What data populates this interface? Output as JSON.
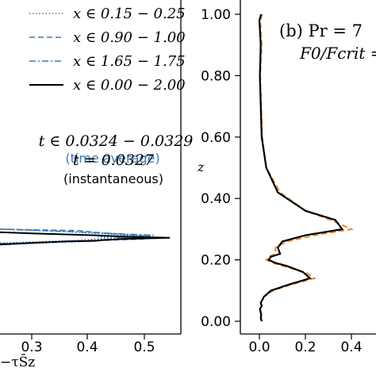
{
  "chart_data": [
    {
      "type": "line",
      "panel": "left",
      "xlabel": "−τS̄z",
      "x_ticks": [
        "0.3",
        "0.4",
        "0.5"
      ],
      "xlim_visible": [
        0.0,
        0.57
      ],
      "legend_placement": "top-right",
      "series": [
        {
          "name": "x ∈ 0.15 − 0.25",
          "style": "dotted",
          "color": "#3a7ab8",
          "x": [
            0.0,
            0.2,
            0.3,
            0.36,
            0.3,
            0.4,
            0.3,
            0.2,
            0.1,
            0.0
          ],
          "y": [
            0.255,
            0.262,
            0.268,
            0.27,
            0.275,
            0.28,
            0.286,
            0.292,
            0.297,
            0.3
          ]
        },
        {
          "name": "x ∈ 0.90 − 1.00",
          "style": "dashed",
          "color": "#3a7ab8",
          "x": [
            0.0,
            0.25,
            0.35,
            0.44,
            0.36,
            0.46,
            0.38,
            0.3,
            0.24,
            0.0
          ],
          "y": [
            0.252,
            0.26,
            0.265,
            0.268,
            0.272,
            0.277,
            0.283,
            0.289,
            0.295,
            0.3
          ]
        },
        {
          "name": "x ∈ 1.65 − 1.75",
          "style": "dashdot",
          "color": "#3a7ab8",
          "x": [
            0.0,
            0.22,
            0.33,
            0.42,
            0.35,
            0.47,
            0.34,
            0.22,
            0.0
          ],
          "y": [
            0.253,
            0.26,
            0.266,
            0.27,
            0.274,
            0.28,
            0.286,
            0.292,
            0.3
          ]
        },
        {
          "name": "x ∈ 0.00 − 2.00",
          "style": "solid",
          "color": "#000000",
          "x": [
            0.0,
            0.1,
            0.2,
            0.29,
            0.31,
            0.38,
            0.52,
            0.4,
            0.33,
            0.29,
            0.2,
            0.1,
            0.0
          ],
          "y": [
            0.25,
            0.255,
            0.26,
            0.262,
            0.264,
            0.268,
            0.272,
            0.275,
            0.278,
            0.28,
            0.283,
            0.286,
            0.29
          ]
        }
      ],
      "annotations": [
        {
          "text": "t ∈ 0.0324 − 0.0329",
          "color": "#3a7ab8"
        },
        {
          "text": "(time average)",
          "color": "#3a7ab8"
        },
        {
          "text": "t = 0.0327",
          "color": "#000000"
        },
        {
          "text": "(instantaneous)",
          "color": "#000000"
        }
      ]
    },
    {
      "type": "line",
      "panel": "right",
      "title": "(b) Pr = 7",
      "subtitle": "F0/Fcrit =",
      "ylabel": "z",
      "ylim": [
        0.0,
        1.02
      ],
      "xlim_visible": [
        -0.05,
        0.5
      ],
      "y_ticks": [
        "0.00",
        "0.20",
        "0.40",
        "0.60",
        "0.80",
        "1.00"
      ],
      "x_ticks": [
        "0.0",
        "0.2",
        "0.4"
      ],
      "series": [
        {
          "name": "instantaneous",
          "style": "dashed",
          "color": "#e8893a",
          "x": [
            0.012,
            0.004,
            0.01,
            0.004,
            0.012,
            0.03,
            0.09,
            0.2,
            0.31,
            0.4,
            0.24,
            0.12,
            0.07,
            0.07,
            0.04,
            0.03,
            0.06,
            0.1,
            0.2,
            0.24,
            0.14,
            0.06,
            0.02,
            0.006,
            0.012,
            0.004,
            0.01,
            0.008,
            0.012
          ],
          "y": [
            1.0,
            0.98,
            0.9,
            0.8,
            0.6,
            0.5,
            0.42,
            0.36,
            0.33,
            0.3,
            0.28,
            0.26,
            0.24,
            0.22,
            0.21,
            0.2,
            0.19,
            0.18,
            0.16,
            0.14,
            0.12,
            0.1,
            0.08,
            0.06,
            0.05,
            0.04,
            0.02,
            0.01,
            0.0
          ]
        },
        {
          "name": "time average",
          "style": "solid",
          "color": "#000000",
          "x": [
            0.008,
            0.0,
            0.006,
            0.002,
            0.01,
            0.03,
            0.08,
            0.2,
            0.33,
            0.36,
            0.2,
            0.1,
            0.08,
            0.09,
            0.05,
            0.04,
            0.07,
            0.12,
            0.19,
            0.22,
            0.13,
            0.05,
            0.02,
            0.006,
            0.01,
            0.002,
            0.008,
            0.006,
            0.01
          ],
          "y": [
            1.0,
            0.98,
            0.9,
            0.8,
            0.6,
            0.5,
            0.42,
            0.36,
            0.33,
            0.3,
            0.28,
            0.26,
            0.24,
            0.22,
            0.21,
            0.2,
            0.19,
            0.18,
            0.16,
            0.14,
            0.12,
            0.1,
            0.08,
            0.06,
            0.05,
            0.04,
            0.02,
            0.01,
            0.0
          ]
        }
      ]
    }
  ]
}
